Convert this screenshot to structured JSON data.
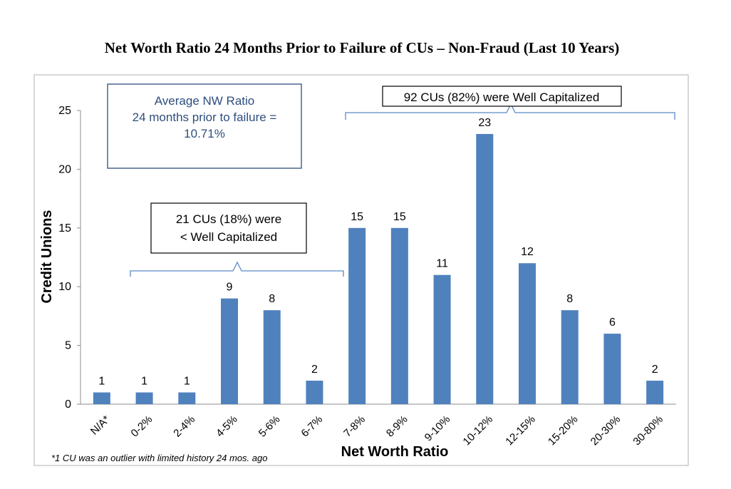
{
  "chart_data": {
    "type": "bar",
    "title": "Net Worth Ratio 24 Months Prior to Failure of CUs – Non-Fraud (Last 10 Years)",
    "xlabel": "Net Worth Ratio",
    "ylabel": "Credit Unions",
    "ylim": [
      0,
      25
    ],
    "yticks": [
      "0",
      "5",
      "10",
      "15",
      "20",
      "25"
    ],
    "categories": [
      "N/A*",
      "0-2%",
      "2-4%",
      "4-5%",
      "5-6%",
      "6-7%",
      "7-8%",
      "8-9%",
      "9-10%",
      "10-12%",
      "12-15%",
      "15-20%",
      "20-30%",
      "30-80%"
    ],
    "values": [
      1,
      1,
      1,
      9,
      8,
      2,
      15,
      15,
      11,
      23,
      12,
      8,
      6,
      2
    ],
    "data_labels": [
      "1",
      "1",
      "1",
      "9",
      "8",
      "2",
      "15",
      "15",
      "11",
      "23",
      "12",
      "8",
      "6",
      "2"
    ],
    "grid": false,
    "bar_color": "#4f81bd",
    "bracket_color": "#5b8ac6",
    "annotations": {
      "average_box": {
        "lines": [
          "Average NW Ratio",
          "24 months prior to failure =",
          "10.71%"
        ],
        "text_color": "#2e4e7e",
        "border_color": "#2e4e7e"
      },
      "under_box": {
        "lines": [
          "21 CUs (18%) were",
          "< Well Capitalized"
        ]
      },
      "well_box": {
        "lines": [
          "92 CUs (82%) were  Well Capitalized"
        ]
      }
    },
    "footnote": "*1 CU was an outlier with limited history 24 mos. ago"
  }
}
